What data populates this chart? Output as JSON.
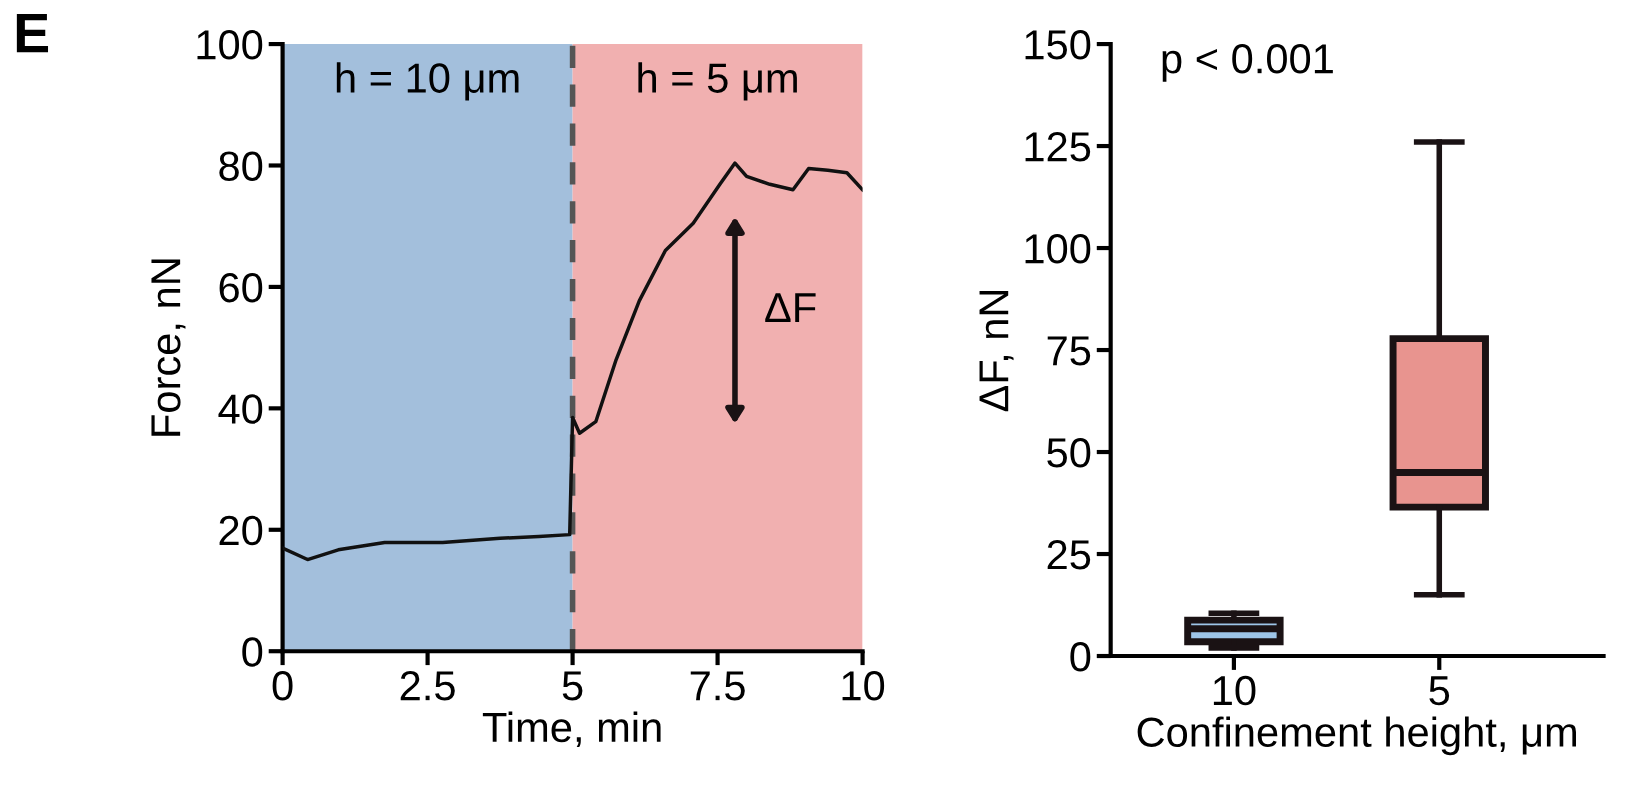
{
  "chart_data": [
    {
      "type": "line",
      "xlabel": "Time, min",
      "ylabel": "Force, nN",
      "x": [
        0,
        0.43,
        0.96,
        1.76,
        2.76,
        3.75,
        4.42,
        4.95,
        5.0,
        5.12,
        5.4,
        5.75,
        6.15,
        6.6,
        7.08,
        7.54,
        7.8,
        8.0,
        8.4,
        8.8,
        9.07,
        9.4,
        9.73,
        10
      ],
      "series": [
        {
          "color": "#111111",
          "values": [
            17,
            15.1,
            16.7,
            17.9,
            17.9,
            18.6,
            18.9,
            19.2,
            38.5,
            35.9,
            37.8,
            48,
            57.7,
            66,
            70.5,
            76.9,
            80.4,
            78.2,
            76.9,
            76,
            79.5,
            79.2,
            78.8,
            76
          ]
        }
      ],
      "xlim": [
        0,
        10
      ],
      "xticks": [
        0,
        2.5,
        5,
        7.5,
        10
      ],
      "ylim": [
        0,
        100
      ],
      "yticks": [
        0,
        20,
        40,
        60,
        80,
        100
      ],
      "bands": [
        {
          "axis": "x",
          "from": 0,
          "to": 5,
          "label": "h = 10 μm",
          "color": "#a3bfdc"
        },
        {
          "axis": "x",
          "from": 5,
          "to": 10,
          "label": "h = 5 μm",
          "color": "#f1b0b0"
        }
      ],
      "ref_lines": [
        {
          "axis": "x",
          "value": 5,
          "color": "#555555",
          "line_style": "dashed"
        }
      ],
      "annotations": [
        "E",
        "ΔF"
      ],
      "grid": false
    },
    {
      "type": "box",
      "xlabel": "Confinement height, μm",
      "ylabel": "ΔF, nN",
      "categories": [
        "10",
        "5"
      ],
      "colors": [
        "#9ec5e8",
        "#e8948f"
      ],
      "boxes": [
        {
          "low": 2,
          "q1": 3.5,
          "median": 6.7,
          "q3": 8.8,
          "high": 10.5
        },
        {
          "low": 15,
          "q1": 36.5,
          "median": 45,
          "q3": 77.8,
          "high": 126
        }
      ],
      "ylim": [
        0,
        150
      ],
      "yticks": [
        0,
        25,
        50,
        75,
        100,
        125,
        150
      ],
      "annotations": [
        "p < 0.001"
      ],
      "grid": false
    }
  ]
}
